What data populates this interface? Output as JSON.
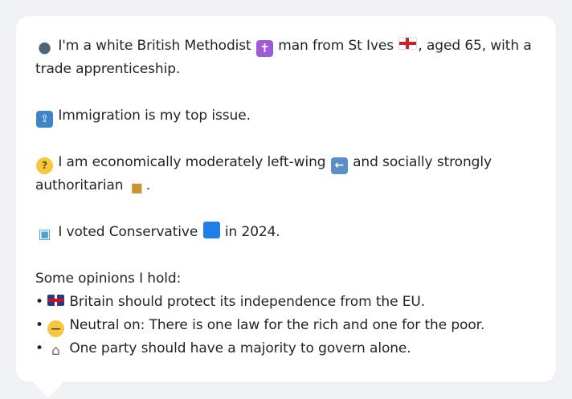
{
  "profile": {
    "intro_text_1": "I'm a white British Methodist",
    "intro_text_2": "man from St Ives",
    "intro_text_3": ", aged 65, with a trade apprenticeship.",
    "top_issue": "Immigration is my top issue.",
    "economics_text_1": "I am economically moderately left-wing",
    "economics_text_2": "and socially strongly authoritarian",
    "economics_text_3": ".",
    "vote_text_1": "I voted Conservative",
    "vote_text_2": "in 2024.",
    "opinions_heading": "Some opinions I hold:",
    "opinions": [
      {
        "text": "Britain should protect its independence from the EU."
      },
      {
        "text": "Neutral on: There is one law for the rich and one for the poor."
      },
      {
        "text": "One party should have a majority to govern alone."
      }
    ]
  },
  "icons": {
    "person": "person-icon",
    "cross": "latin-cross-icon",
    "flag_england": "england-flag-icon",
    "immigration": "passport-control-icon",
    "thinking": "thinking-face-icon",
    "left_arrow": "left-arrow-icon",
    "lock": "lock-icon",
    "ballot": "ballot-box-icon",
    "party_square": "blue-square-icon",
    "flag_uk": "uk-flag-icon",
    "neutral_face": "neutral-face-icon",
    "building": "classical-building-icon"
  },
  "colors": {
    "page_background": "#f1f2f6",
    "card_background": "#ffffff",
    "text": "#1f2328",
    "conservative_blue": "#1f7ee8"
  }
}
